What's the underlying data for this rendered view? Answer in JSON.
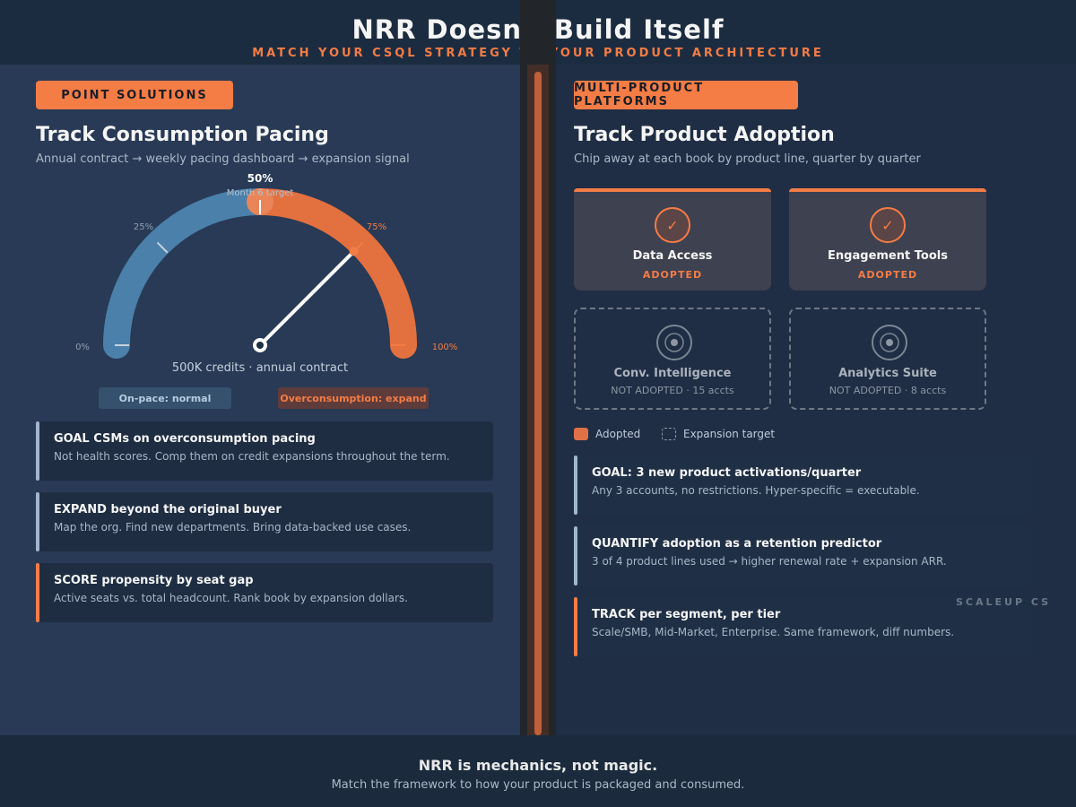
{
  "header": {
    "title": "NRR Doesn't Build Itself",
    "subtitle": "MATCH YOUR CSQL STRATEGY TO YOUR PRODUCT ARCHITECTURE"
  },
  "left": {
    "pill": "POINT SOLUTIONS",
    "title": "Track Consumption Pacing",
    "subtitle": "Annual contract → weekly pacing dashboard → expansion signal",
    "gauge": {
      "value_pct": 75,
      "target_pct": 50,
      "target_label": "50%",
      "target_caption": "Month 6 target",
      "tick_labels": {
        "t0": "0%",
        "t25": "25%",
        "t75": "75%",
        "t100": "100%"
      },
      "caption": "500K credits · annual contract",
      "colors": {
        "pacing": "#4a80aa",
        "over": "#e3703f"
      }
    },
    "tags": {
      "normal": "On-pace: normal",
      "expand": "Overconsumption: expand"
    },
    "cards": [
      {
        "title": "GOAL CSMs on overconsumption pacing",
        "text": "Not health scores. Comp them on credit expansions throughout the term."
      },
      {
        "title": "EXPAND beyond the original buyer",
        "text": "Map the org. Find new departments. Bring data-backed use cases."
      },
      {
        "title": "SCORE propensity by seat gap",
        "text": "Active seats vs. total headcount. Rank book by expansion dollars."
      }
    ]
  },
  "right": {
    "pill": "MULTI-PRODUCT PLATFORMS",
    "title": "Track Product Adoption",
    "subtitle": "Chip away at each book by product line, quarter by quarter",
    "tiles": [
      {
        "name": "Data Access",
        "status": "ADOPTED",
        "icon": "check-icon"
      },
      {
        "name": "Engagement Tools",
        "status": "ADOPTED",
        "icon": "check-icon"
      },
      {
        "name": "Conv. Intelligence",
        "status": "NOT ADOPTED · 15 accts",
        "icon": "target-icon"
      },
      {
        "name": "Analytics Suite",
        "status": "NOT ADOPTED · 8 accts",
        "icon": "target-icon"
      }
    ],
    "legend": {
      "adopted": "Adopted",
      "target": "Expansion target"
    },
    "cards": [
      {
        "title": "GOAL: 3 new product activations/quarter",
        "text": "Any 3 accounts, no restrictions. Hyper-specific = executable."
      },
      {
        "title": "QUANTIFY adoption as a retention predictor",
        "text": "3 of 4 product lines used → higher renewal rate + expansion ARR."
      },
      {
        "title": "TRACK per segment, per tier",
        "text": "Scale/SMB, Mid-Market, Enterprise. Same framework, diff numbers."
      }
    ]
  },
  "watermark": "SCALEUP CS",
  "footer": {
    "title": "NRR is mechanics, not magic.",
    "subtitle": "Match the framework to how your product is packaged and consumed."
  }
}
